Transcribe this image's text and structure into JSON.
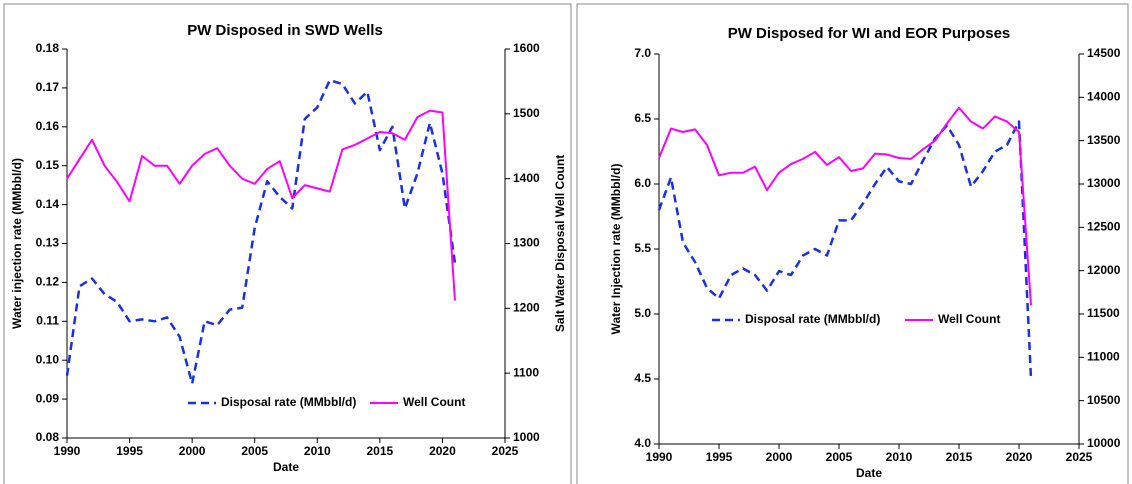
{
  "chart_data": [
    {
      "type": "line",
      "title": "PW Disposed in SWD Wells",
      "x_label": "Date",
      "y_label": "Water injection rate (MMbbl/d)",
      "y2_label": "Salt Water Disposal Well Count",
      "x": [
        1990,
        1991,
        1992,
        1993,
        1994,
        1995,
        1996,
        1997,
        1998,
        1999,
        2000,
        2001,
        2002,
        2003,
        2004,
        2005,
        2006,
        2007,
        2008,
        2009,
        2010,
        2011,
        2012,
        2013,
        2014,
        2015,
        2016,
        2017,
        2018,
        2019,
        2020,
        2021
      ],
      "series": [
        {
          "name": "Disposal rate (MMbbl/d)",
          "color": "#1a2fe0",
          "dashed": true,
          "axis": "y",
          "values": [
            0.096,
            0.119,
            0.121,
            0.117,
            0.115,
            0.11,
            0.1105,
            0.11,
            0.111,
            0.106,
            0.094,
            0.11,
            0.109,
            0.113,
            0.1135,
            0.134,
            0.146,
            0.142,
            0.139,
            0.162,
            0.165,
            0.172,
            0.171,
            0.166,
            0.169,
            0.154,
            0.16,
            0.139,
            0.148,
            0.161,
            0.148,
            0.125
          ]
        },
        {
          "name": "Well Count",
          "color": "#ff00ff",
          "dashed": false,
          "axis": "y2",
          "values": [
            1400,
            1430,
            1460,
            1420,
            1395,
            1365,
            1435,
            1420,
            1420,
            1392,
            1420,
            1438,
            1447,
            1420,
            1400,
            1392,
            1415,
            1427,
            1370,
            1390,
            1385,
            1380,
            1445,
            1452,
            1462,
            1472,
            1470,
            1460,
            1495,
            1505,
            1502,
            1212
          ]
        }
      ],
      "xlim": [
        1990,
        2025
      ],
      "xticks": [
        1990,
        1995,
        2000,
        2005,
        2010,
        2015,
        2020,
        2025
      ],
      "ylim": [
        0.08,
        0.18
      ],
      "yticks": [
        0.08,
        0.09,
        {
          "value": 0.1,
          "label": "0.10"
        },
        0.11,
        0.12,
        0.13,
        0.14,
        0.15,
        0.16,
        0.17,
        0.18
      ],
      "y2lim": [
        1000,
        1600
      ],
      "y2ticks": [
        1000,
        1100,
        1200,
        1300,
        1400,
        1500,
        1600
      ],
      "grid": false,
      "legend_position": "lower right"
    },
    {
      "type": "line",
      "title": "PW Disposed for WI and EOR Purposes",
      "x_label": "Date",
      "y_label": "Water Injection rate (MMbbl/d)",
      "x": [
        1990,
        1991,
        1992,
        1993,
        1994,
        1995,
        1996,
        1997,
        1998,
        1999,
        2000,
        2001,
        2002,
        2003,
        2004,
        2005,
        2006,
        2007,
        2008,
        2009,
        2010,
        2011,
        2012,
        2013,
        2014,
        2015,
        2016,
        2017,
        2018,
        2019,
        2020,
        2021
      ],
      "series": [
        {
          "name": "Disposal rate (MMbbl/d)",
          "color": "#1a2fe0",
          "dashed": true,
          "axis": "y",
          "values": [
            5.8,
            6.05,
            5.55,
            5.4,
            5.2,
            5.12,
            5.3,
            5.35,
            5.3,
            5.18,
            5.33,
            5.3,
            5.45,
            5.5,
            5.45,
            5.72,
            5.72,
            5.85,
            6.0,
            6.13,
            6.02,
            6.0,
            6.18,
            6.35,
            6.45,
            6.3,
            5.98,
            6.1,
            6.25,
            6.3,
            6.48,
            4.5
          ]
        },
        {
          "name": "Well Count",
          "color": "#ff00ff",
          "dashed": false,
          "axis": "y2",
          "values": [
            13300,
            13640,
            13600,
            13630,
            13450,
            13100,
            13130,
            13130,
            13200,
            12930,
            13130,
            13230,
            13290,
            13370,
            13220,
            13310,
            13150,
            13180,
            13350,
            13340,
            13300,
            13290,
            13400,
            13500,
            13700,
            13880,
            13720,
            13640,
            13780,
            13720,
            13600,
            11600
          ]
        }
      ],
      "xlim": [
        1990,
        2025
      ],
      "xticks": [
        1990,
        1995,
        2000,
        2005,
        2010,
        2015,
        2020,
        2025
      ],
      "ylim": [
        4,
        7
      ],
      "yticks": [
        {
          "value": 4,
          "label": "4.0"
        },
        4.5,
        {
          "value": 5,
          "label": "5.0"
        },
        5.5,
        {
          "value": 6,
          "label": "6.0"
        },
        6.5,
        {
          "value": 7,
          "label": "7.0"
        }
      ],
      "y2lim": [
        10000,
        14500
      ],
      "y2ticks": [
        10000,
        10500,
        11000,
        11500,
        12000,
        12500,
        13000,
        13500,
        14000,
        14500
      ],
      "grid": false,
      "legend_position": "center"
    }
  ]
}
